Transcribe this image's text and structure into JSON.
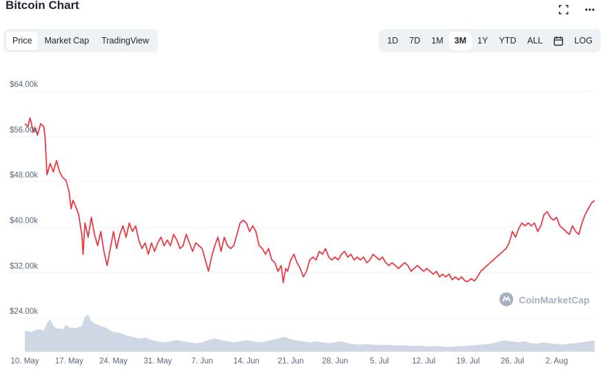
{
  "header": {
    "title": "Bitcoin Chart"
  },
  "icons": {
    "fullscreen": "fullscreen-icon",
    "more": "more-icon",
    "calendar": "calendar-icon"
  },
  "left_tabs": [
    {
      "label": "Price",
      "active": true
    },
    {
      "label": "Market Cap",
      "active": false
    },
    {
      "label": "TradingView",
      "active": false
    }
  ],
  "range_tabs": [
    {
      "label": "1D",
      "active": false
    },
    {
      "label": "7D",
      "active": false
    },
    {
      "label": "1M",
      "active": false
    },
    {
      "label": "3M",
      "active": true
    },
    {
      "label": "1Y",
      "active": false
    },
    {
      "label": "YTD",
      "active": false
    },
    {
      "label": "ALL",
      "active": false
    }
  ],
  "log_label": "LOG",
  "watermark": "CoinMarketCap",
  "colors": {
    "line": "#ea3943",
    "volume": "#cfd6e4",
    "grid": "#eff2f5",
    "axis_text": "#58667e"
  },
  "chart_data": {
    "type": "line",
    "title": "",
    "xlabel": "",
    "ylabel": "",
    "ylim": [
      20000,
      68000
    ],
    "yticks": [
      {
        "value": 64000,
        "label": "$64.00k"
      },
      {
        "value": 56000,
        "label": "$56.00k"
      },
      {
        "value": 48000,
        "label": "$48.00k"
      },
      {
        "value": 40000,
        "label": "$40.00k"
      },
      {
        "value": 32000,
        "label": "$32.00k"
      },
      {
        "value": 24000,
        "label": "$24.00k"
      }
    ],
    "x_range_days": [
      0,
      90
    ],
    "xticks": [
      {
        "day": 0,
        "label": "10. May"
      },
      {
        "day": 7,
        "label": "17. May"
      },
      {
        "day": 14,
        "label": "24. May"
      },
      {
        "day": 21,
        "label": "31. May"
      },
      {
        "day": 28,
        "label": "7. Jun"
      },
      {
        "day": 35,
        "label": "14. Jun"
      },
      {
        "day": 42,
        "label": "21. Jun"
      },
      {
        "day": 49,
        "label": "28. Jun"
      },
      {
        "day": 56,
        "label": "5. Jul"
      },
      {
        "day": 63,
        "label": "12. Jul"
      },
      {
        "day": 70,
        "label": "19. Jul"
      },
      {
        "day": 77,
        "label": "26. Jul"
      },
      {
        "day": 84,
        "label": "2. Aug"
      }
    ],
    "grid": true,
    "series": [
      {
        "values": [
          [
            0,
            57500
          ],
          [
            0.5,
            57000
          ],
          [
            0.8,
            58500
          ],
          [
            1,
            57800
          ],
          [
            1.3,
            56000
          ],
          [
            1.6,
            56800
          ],
          [
            2,
            55500
          ],
          [
            2.5,
            57500
          ],
          [
            3,
            57000
          ],
          [
            3.2,
            55000
          ],
          [
            3.5,
            48500
          ],
          [
            4,
            50500
          ],
          [
            4.5,
            49000
          ],
          [
            5,
            51000
          ],
          [
            5.5,
            49000
          ],
          [
            6,
            48000
          ],
          [
            6.5,
            47500
          ],
          [
            7,
            45500
          ],
          [
            7.3,
            42500
          ],
          [
            7.6,
            44000
          ],
          [
            8,
            43000
          ],
          [
            8.5,
            41500
          ],
          [
            9,
            38000
          ],
          [
            9.2,
            34500
          ],
          [
            9.5,
            40000
          ],
          [
            10,
            37500
          ],
          [
            10.5,
            41000
          ],
          [
            11,
            38000
          ],
          [
            11.5,
            36000
          ],
          [
            12,
            38500
          ],
          [
            12.5,
            35000
          ],
          [
            13,
            32500
          ],
          [
            13.5,
            35500
          ],
          [
            14,
            38500
          ],
          [
            14.5,
            35500
          ],
          [
            15,
            38000
          ],
          [
            15.5,
            39500
          ],
          [
            16,
            37500
          ],
          [
            16.5,
            40000
          ],
          [
            17,
            38500
          ],
          [
            17.5,
            39500
          ],
          [
            18,
            37000
          ],
          [
            18.5,
            35500
          ],
          [
            19,
            36500
          ],
          [
            19.5,
            34500
          ],
          [
            20,
            36500
          ],
          [
            20.5,
            35000
          ],
          [
            21,
            36500
          ],
          [
            21.5,
            37500
          ],
          [
            22,
            36000
          ],
          [
            22.5,
            37000
          ],
          [
            23,
            36000
          ],
          [
            23.5,
            38000
          ],
          [
            24,
            37000
          ],
          [
            24.5,
            35500
          ],
          [
            25,
            36000
          ],
          [
            25.5,
            38000
          ],
          [
            26,
            36500
          ],
          [
            26.5,
            35000
          ],
          [
            27,
            36500
          ],
          [
            27.5,
            36000
          ],
          [
            28,
            35500
          ],
          [
            28.5,
            33500
          ],
          [
            29,
            31500
          ],
          [
            29.5,
            34000
          ],
          [
            30,
            36000
          ],
          [
            30.5,
            37500
          ],
          [
            31,
            35000
          ],
          [
            31.5,
            37500
          ],
          [
            32,
            36000
          ],
          [
            32.5,
            35500
          ],
          [
            33,
            36000
          ],
          [
            33.5,
            38000
          ],
          [
            34,
            40000
          ],
          [
            34.5,
            40500
          ],
          [
            35,
            40000
          ],
          [
            35.5,
            38500
          ],
          [
            36,
            39500
          ],
          [
            36.5,
            38500
          ],
          [
            37,
            36000
          ],
          [
            37.5,
            35500
          ],
          [
            38,
            34500
          ],
          [
            38.5,
            35500
          ],
          [
            39,
            33500
          ],
          [
            39.5,
            33000
          ],
          [
            40,
            31500
          ],
          [
            40.5,
            32500
          ],
          [
            40.8,
            29500
          ],
          [
            41.2,
            32000
          ],
          [
            41.5,
            31500
          ],
          [
            42,
            33500
          ],
          [
            42.5,
            34500
          ],
          [
            43,
            33000
          ],
          [
            43.5,
            32000
          ],
          [
            44,
            30500
          ],
          [
            44.5,
            31500
          ],
          [
            45,
            33500
          ],
          [
            45.5,
            34000
          ],
          [
            46,
            33500
          ],
          [
            46.5,
            35000
          ],
          [
            47,
            34500
          ],
          [
            47.5,
            35500
          ],
          [
            48,
            34000
          ],
          [
            48.5,
            33500
          ],
          [
            49,
            34000
          ],
          [
            49.5,
            33500
          ],
          [
            50,
            34500
          ],
          [
            50.5,
            35000
          ],
          [
            51,
            34000
          ],
          [
            51.5,
            34500
          ],
          [
            52,
            33500
          ],
          [
            52.5,
            34000
          ],
          [
            53,
            33500
          ],
          [
            53.5,
            34000
          ],
          [
            54,
            33000
          ],
          [
            54.5,
            33500
          ],
          [
            55,
            34500
          ],
          [
            55.5,
            34000
          ],
          [
            56,
            33500
          ],
          [
            56.5,
            34000
          ],
          [
            57,
            33000
          ],
          [
            57.5,
            32500
          ],
          [
            58,
            33000
          ],
          [
            58.5,
            32500
          ],
          [
            59,
            32000
          ],
          [
            59.5,
            32500
          ],
          [
            60,
            33000
          ],
          [
            60.5,
            32500
          ],
          [
            61,
            31500
          ],
          [
            61.5,
            32000
          ],
          [
            62,
            32500
          ],
          [
            62.5,
            32000
          ],
          [
            63,
            31500
          ],
          [
            63.5,
            32000
          ],
          [
            64,
            31500
          ],
          [
            64.5,
            31000
          ],
          [
            65,
            31500
          ],
          [
            65.5,
            30500
          ],
          [
            66,
            31000
          ],
          [
            66.5,
            30500
          ],
          [
            67,
            31000
          ],
          [
            67.5,
            30000
          ],
          [
            68,
            30500
          ],
          [
            68.5,
            30000
          ],
          [
            69,
            30500
          ],
          [
            69.5,
            29800
          ],
          [
            70,
            29700
          ],
          [
            70.5,
            30200
          ],
          [
            71,
            29800
          ],
          [
            71.5,
            30500
          ],
          [
            72,
            31500
          ],
          [
            72.5,
            32000
          ],
          [
            73,
            32500
          ],
          [
            73.5,
            33000
          ],
          [
            74,
            33500
          ],
          [
            74.5,
            34000
          ],
          [
            75,
            34500
          ],
          [
            75.5,
            35000
          ],
          [
            76,
            35500
          ],
          [
            76.5,
            36500
          ],
          [
            77,
            38500
          ],
          [
            77.5,
            37500
          ],
          [
            78,
            39000
          ],
          [
            78.5,
            40000
          ],
          [
            79,
            39500
          ],
          [
            79.5,
            40000
          ],
          [
            80,
            39500
          ],
          [
            80.5,
            40000
          ],
          [
            81,
            38500
          ],
          [
            81.5,
            39500
          ],
          [
            82,
            41500
          ],
          [
            82.5,
            42000
          ],
          [
            83,
            41000
          ],
          [
            83.5,
            40500
          ],
          [
            84,
            41000
          ],
          [
            84.5,
            39500
          ],
          [
            85,
            39000
          ],
          [
            85.5,
            38500
          ],
          [
            86,
            38000
          ],
          [
            86.5,
            39500
          ],
          [
            87,
            38500
          ],
          [
            87.5,
            38000
          ],
          [
            88,
            40000
          ],
          [
            88.5,
            41500
          ],
          [
            89,
            42500
          ],
          [
            89.5,
            43500
          ],
          [
            90,
            44000
          ]
        ]
      }
    ],
    "volume_relative": [
      [
        0,
        0.45
      ],
      [
        1,
        0.42
      ],
      [
        2,
        0.48
      ],
      [
        3,
        0.46
      ],
      [
        3.5,
        0.6
      ],
      [
        4,
        0.7
      ],
      [
        4.5,
        0.55
      ],
      [
        5,
        0.5
      ],
      [
        6,
        0.48
      ],
      [
        6.5,
        0.58
      ],
      [
        7,
        0.52
      ],
      [
        8,
        0.5
      ],
      [
        9,
        0.55
      ],
      [
        9.5,
        0.75
      ],
      [
        10,
        0.8
      ],
      [
        10.5,
        0.65
      ],
      [
        11,
        0.6
      ],
      [
        12,
        0.55
      ],
      [
        13,
        0.5
      ],
      [
        13.5,
        0.45
      ],
      [
        14,
        0.42
      ],
      [
        15,
        0.4
      ],
      [
        16,
        0.35
      ],
      [
        17,
        0.32
      ],
      [
        18,
        0.28
      ],
      [
        19,
        0.3
      ],
      [
        20,
        0.25
      ],
      [
        21,
        0.22
      ],
      [
        22,
        0.2
      ],
      [
        23,
        0.22
      ],
      [
        24,
        0.25
      ],
      [
        25,
        0.22
      ],
      [
        26,
        0.2
      ],
      [
        27,
        0.18
      ],
      [
        28,
        0.2
      ],
      [
        29,
        0.25
      ],
      [
        30,
        0.28
      ],
      [
        31,
        0.25
      ],
      [
        32,
        0.22
      ],
      [
        33,
        0.2
      ],
      [
        34,
        0.22
      ],
      [
        35,
        0.25
      ],
      [
        36,
        0.22
      ],
      [
        37,
        0.2
      ],
      [
        38,
        0.22
      ],
      [
        39,
        0.25
      ],
      [
        40,
        0.28
      ],
      [
        41,
        0.32
      ],
      [
        42,
        0.26
      ],
      [
        43,
        0.24
      ],
      [
        44,
        0.22
      ],
      [
        45,
        0.2
      ],
      [
        46,
        0.22
      ],
      [
        47,
        0.2
      ],
      [
        48,
        0.18
      ],
      [
        49,
        0.2
      ],
      [
        50,
        0.22
      ],
      [
        51,
        0.18
      ],
      [
        52,
        0.16
      ],
      [
        53,
        0.15
      ],
      [
        54,
        0.16
      ],
      [
        55,
        0.15
      ],
      [
        56,
        0.14
      ],
      [
        57,
        0.15
      ],
      [
        58,
        0.14
      ],
      [
        59,
        0.13
      ],
      [
        60,
        0.14
      ],
      [
        61,
        0.12
      ],
      [
        62,
        0.13
      ],
      [
        63,
        0.12
      ],
      [
        64,
        0.11
      ],
      [
        65,
        0.12
      ],
      [
        66,
        0.11
      ],
      [
        67,
        0.1
      ],
      [
        68,
        0.11
      ],
      [
        69,
        0.12
      ],
      [
        70,
        0.13
      ],
      [
        71,
        0.14
      ],
      [
        72,
        0.15
      ],
      [
        73,
        0.16
      ],
      [
        74,
        0.18
      ],
      [
        75,
        0.22
      ],
      [
        76,
        0.24
      ],
      [
        77,
        0.22
      ],
      [
        78,
        0.2
      ],
      [
        79,
        0.22
      ],
      [
        80,
        0.18
      ],
      [
        81,
        0.17
      ],
      [
        82,
        0.2
      ],
      [
        83,
        0.18
      ],
      [
        84,
        0.16
      ],
      [
        85,
        0.15
      ],
      [
        86,
        0.17
      ],
      [
        87,
        0.18
      ],
      [
        88,
        0.2
      ],
      [
        89,
        0.22
      ],
      [
        90,
        0.24
      ]
    ]
  }
}
